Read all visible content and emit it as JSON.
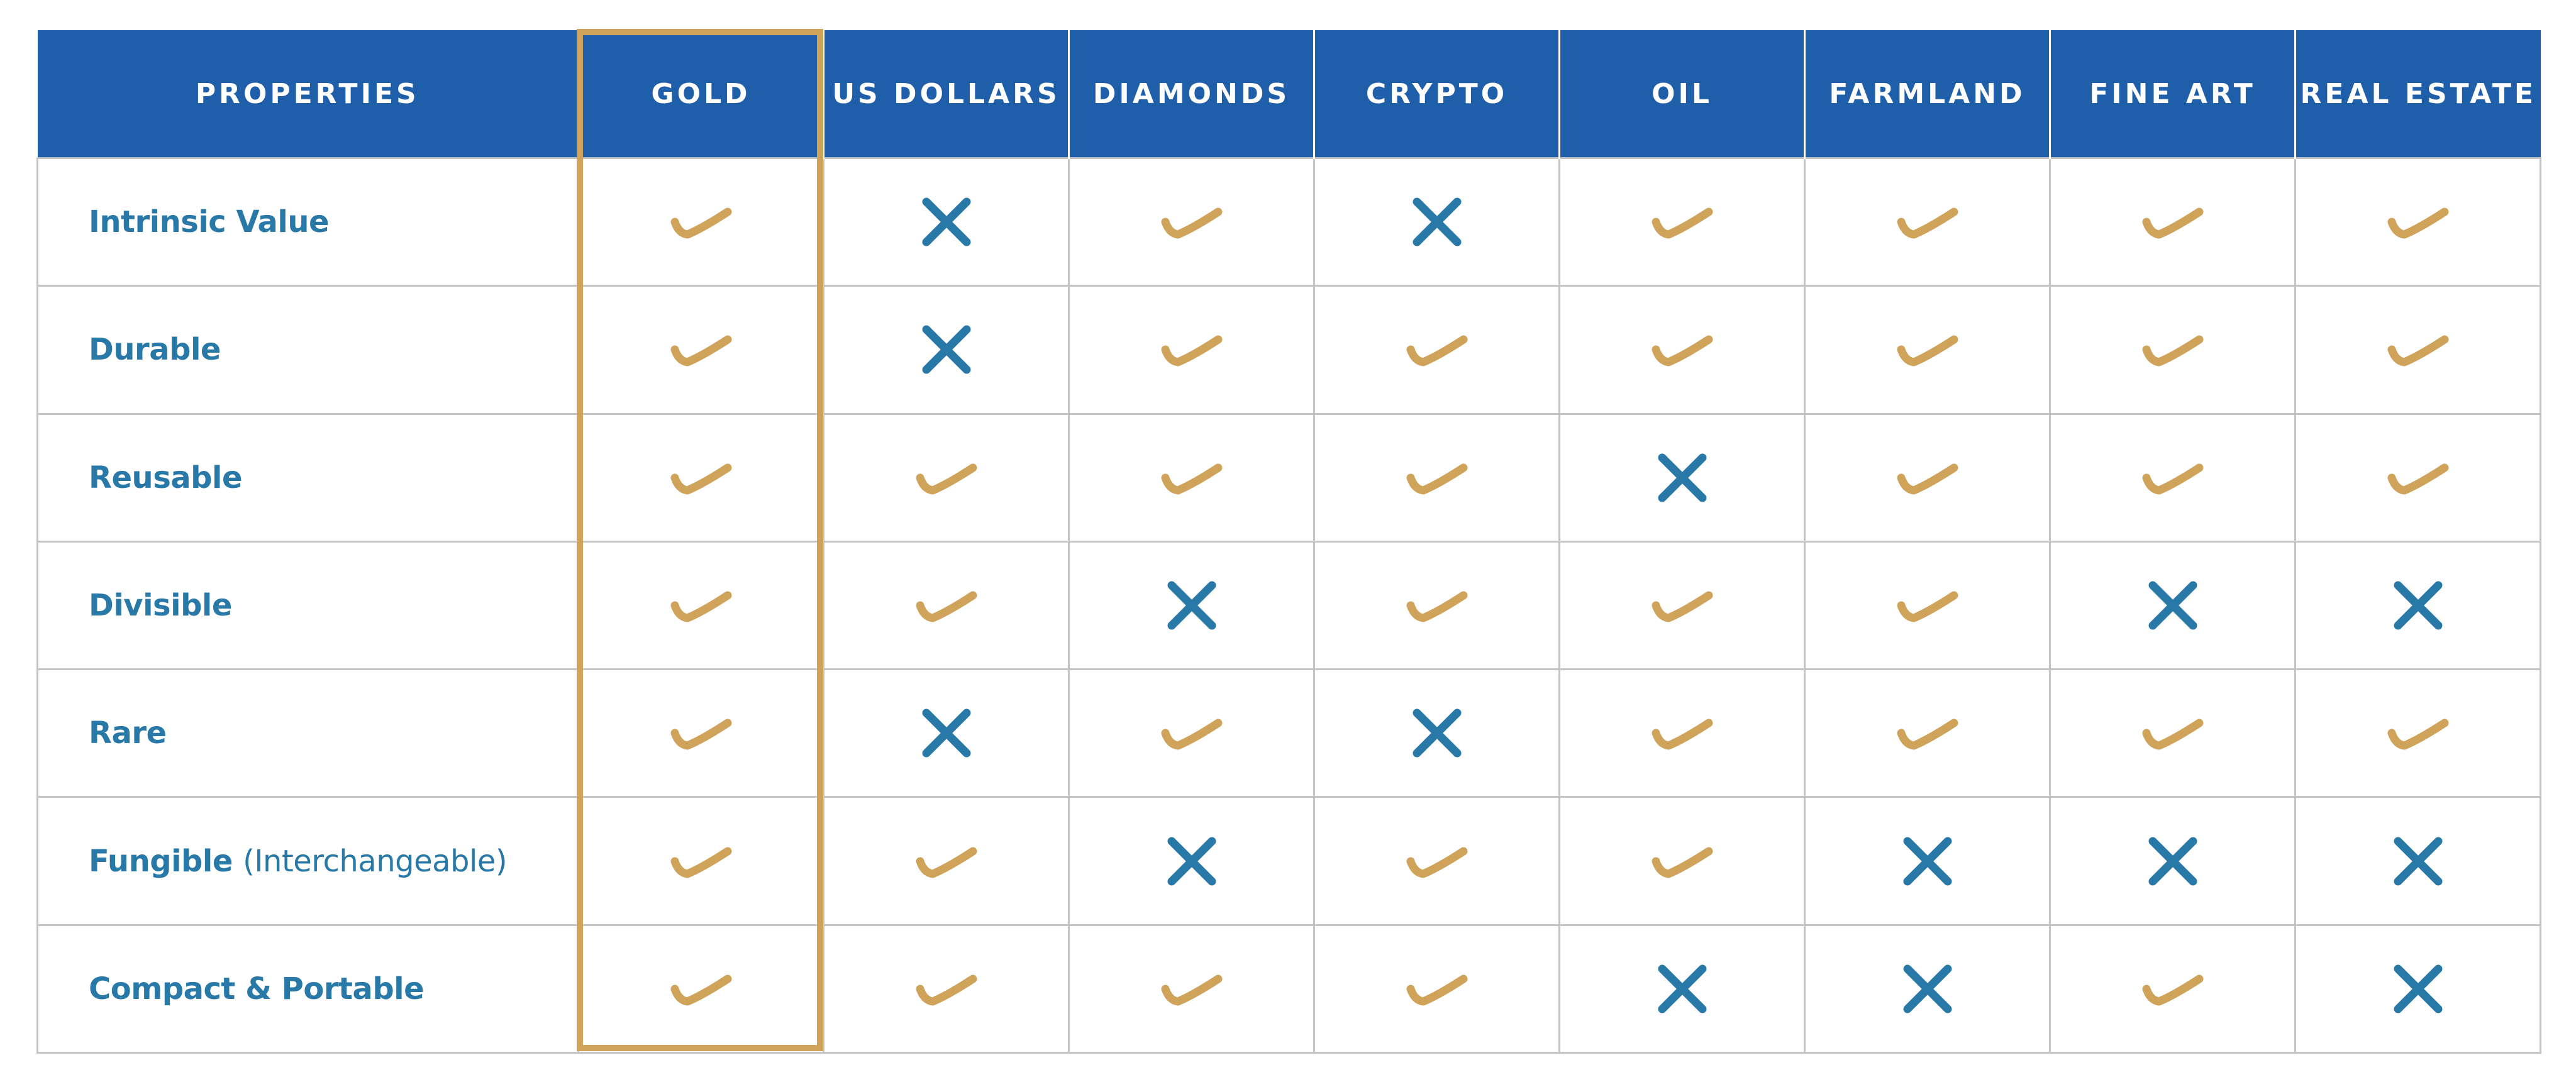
{
  "table": {
    "properties_header": "PROPERTIES",
    "assets": [
      "GOLD",
      "US DOLLARS",
      "DIAMONDS",
      "CRYPTO",
      "OIL",
      "FARMLAND",
      "FINE ART",
      "REAL ESTATE"
    ],
    "highlighted_asset": "GOLD",
    "rows": [
      {
        "label": "Intrinsic Value",
        "note": "",
        "marks": [
          "check",
          "cross",
          "check",
          "cross",
          "check",
          "check",
          "check",
          "check"
        ]
      },
      {
        "label": "Durable",
        "note": "",
        "marks": [
          "check",
          "cross",
          "check",
          "check",
          "check",
          "check",
          "check",
          "check"
        ]
      },
      {
        "label": "Reusable",
        "note": "",
        "marks": [
          "check",
          "check",
          "check",
          "check",
          "cross",
          "check",
          "check",
          "check"
        ]
      },
      {
        "label": "Divisible",
        "note": "",
        "marks": [
          "check",
          "check",
          "cross",
          "check",
          "check",
          "check",
          "cross",
          "cross"
        ]
      },
      {
        "label": "Rare",
        "note": "",
        "marks": [
          "check",
          "cross",
          "check",
          "cross",
          "check",
          "check",
          "check",
          "check"
        ]
      },
      {
        "label": "Fungible",
        "note": "(Interchangeable)",
        "marks": [
          "check",
          "check",
          "cross",
          "check",
          "check",
          "cross",
          "cross",
          "cross"
        ]
      },
      {
        "label": "Compact & Portable",
        "note": "",
        "marks": [
          "check",
          "check",
          "check",
          "check",
          "cross",
          "cross",
          "check",
          "cross"
        ]
      }
    ]
  },
  "icons": {
    "check": "checkmark-icon",
    "cross": "cross-icon"
  },
  "colors": {
    "header_background": "#1f5ea8",
    "header_text": "#ffffff",
    "label_text": "#2878a8",
    "check": "#cfa35a",
    "cross": "#2878a8",
    "highlight_border": "#cfa35a",
    "grid": "#c4c4c4"
  }
}
